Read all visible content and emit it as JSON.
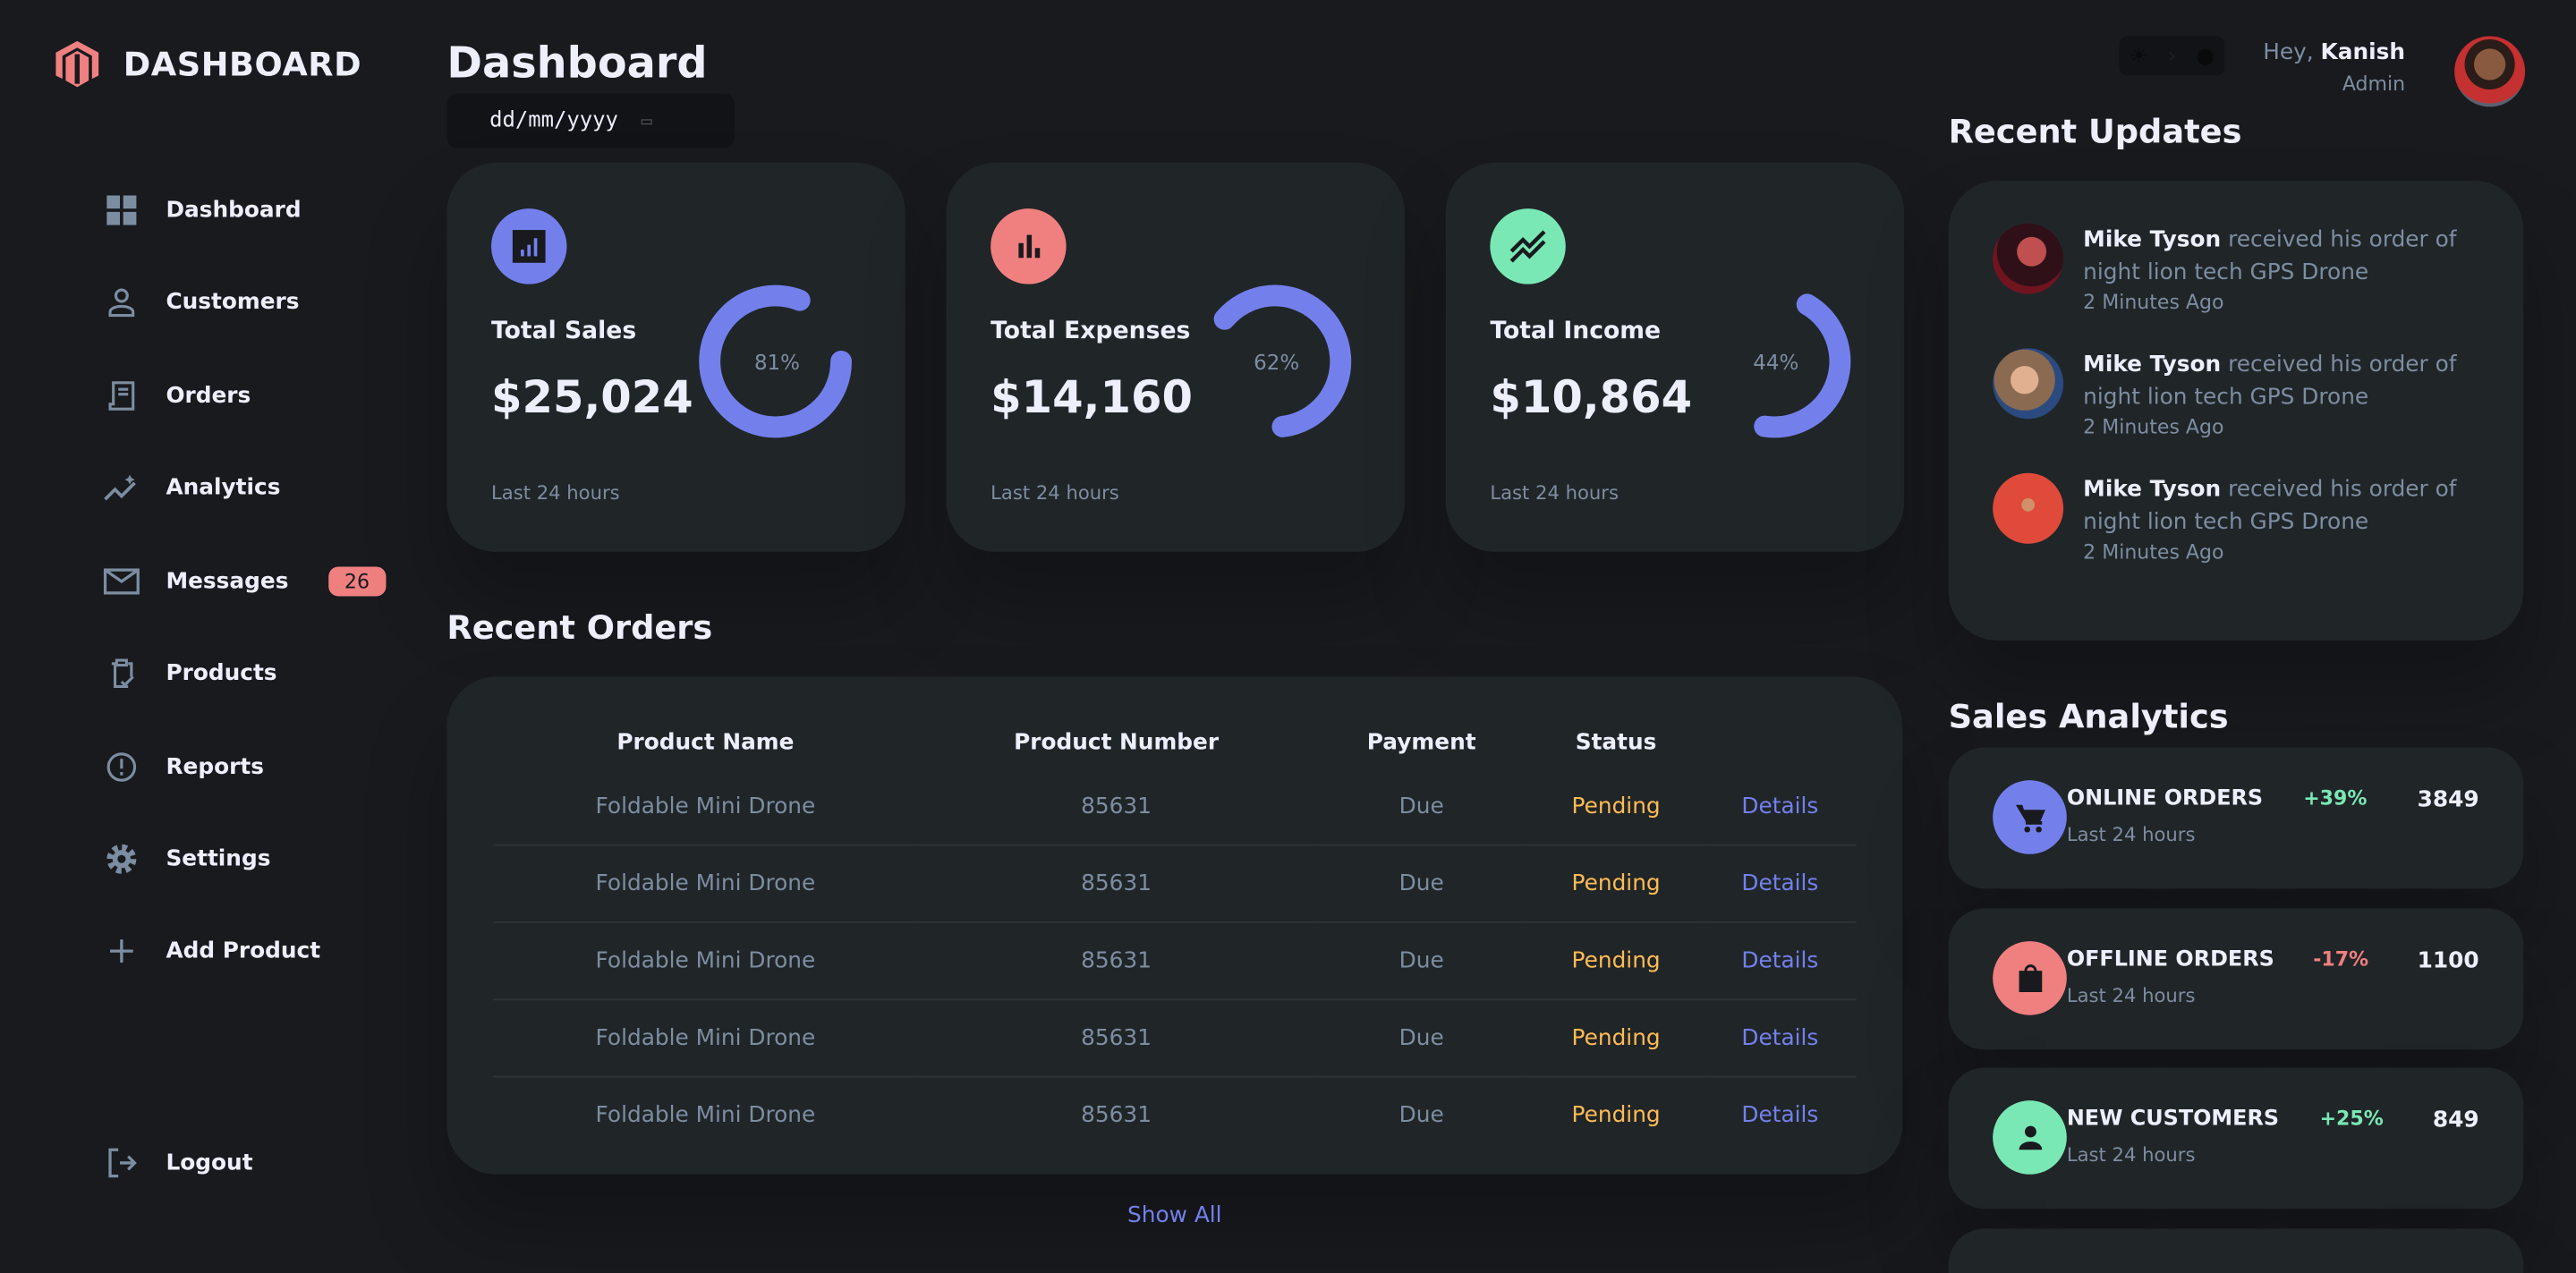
{
  "brand": {
    "title": "DASHBOARD",
    "logo_color": "#f08080"
  },
  "sidebar": {
    "items": [
      {
        "label": "Dashboard",
        "icon": "grid-icon"
      },
      {
        "label": "Customers",
        "icon": "person-icon"
      },
      {
        "label": "Orders",
        "icon": "receipt-icon"
      },
      {
        "label": "Analytics",
        "icon": "insights-icon"
      },
      {
        "label": "Messages",
        "icon": "mail-icon",
        "badge": "26"
      },
      {
        "label": "Products",
        "icon": "inventory-icon"
      },
      {
        "label": "Reports",
        "icon": "report-icon"
      },
      {
        "label": "Settings",
        "icon": "gear-icon"
      },
      {
        "label": "Add Product",
        "icon": "plus-icon"
      }
    ],
    "logout": "Logout"
  },
  "main": {
    "title": "Dashboard",
    "date_placeholder": "dd/mm/yyyy",
    "kpis": [
      {
        "title": "Total Sales",
        "value": "$25,024",
        "percent": 81,
        "percent_label": "81%",
        "sub": "Last 24 hours",
        "color": "#7380ec"
      },
      {
        "title": "Total Expenses",
        "value": "$14,160",
        "percent": 62,
        "percent_label": "62%",
        "sub": "Last 24 hours",
        "color": "#f08080"
      },
      {
        "title": "Total Income",
        "value": "$10,864",
        "percent": 44,
        "percent_label": "44%",
        "sub": "Last 24 hours",
        "color": "#7ae8b5"
      }
    ],
    "orders": {
      "title": "Recent Orders",
      "headers": [
        "Product Name",
        "Product Number",
        "Payment",
        "Status",
        ""
      ],
      "rows": [
        [
          "Foldable Mini Drone",
          "85631",
          "Due",
          "Pending",
          "Details"
        ],
        [
          "Foldable Mini Drone",
          "85631",
          "Due",
          "Pending",
          "Details"
        ],
        [
          "Foldable Mini Drone",
          "85631",
          "Due",
          "Pending",
          "Details"
        ],
        [
          "Foldable Mini Drone",
          "85631",
          "Due",
          "Pending",
          "Details"
        ],
        [
          "Foldable Mini Drone",
          "85631",
          "Due",
          "Pending",
          "Details"
        ]
      ],
      "show_all": "Show All"
    }
  },
  "topbar": {
    "greeting": "Hey,",
    "name": "Kanish",
    "role": "Admin"
  },
  "updates": {
    "title": "Recent Updates",
    "items": [
      {
        "name": "Mike Tyson",
        "text": "received his order of night lion tech GPS Drone",
        "time": "2 Minutes Ago"
      },
      {
        "name": "Mike Tyson",
        "text": "received his order of night lion tech GPS Drone",
        "time": "2 Minutes Ago"
      },
      {
        "name": "Mike Tyson",
        "text": "received his order of night lion tech GPS Drone",
        "time": "2 Minutes Ago"
      }
    ]
  },
  "analytics": {
    "title": "Sales Analytics",
    "items": [
      {
        "name": "ONLINE ORDERS",
        "sub": "Last 24 hours",
        "change": "+39%",
        "value": "3849",
        "color": "#7380ec",
        "change_color": "#7ae8b5"
      },
      {
        "name": "OFFLINE ORDERS",
        "sub": "Last 24 hours",
        "change": "-17%",
        "value": "1100",
        "color": "#f08080",
        "change_color": "#f08080"
      },
      {
        "name": "NEW CUSTOMERS",
        "sub": "Last 24 hours",
        "change": "+25%",
        "value": "849",
        "color": "#7ae8b5",
        "change_color": "#7ae8b5"
      }
    ]
  }
}
